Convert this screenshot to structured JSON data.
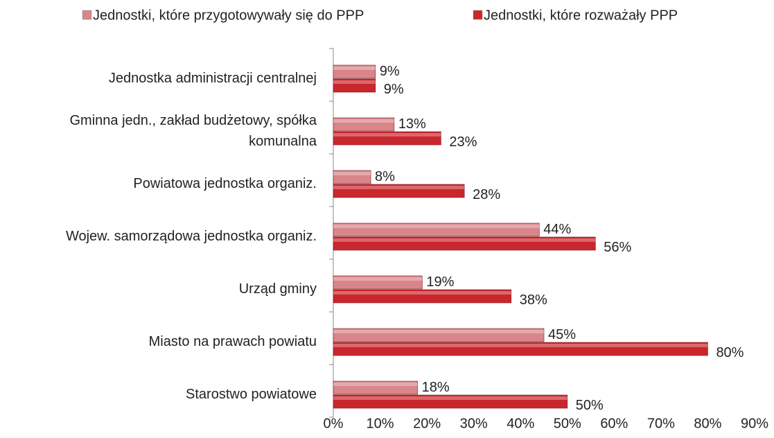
{
  "chart_data": {
    "type": "hbar",
    "categories": [
      "Jednostka administracji centralnej",
      "Gminna jedn., zakład budżetowy, spółka komunalna",
      "Powiatowa jednostka organiz.",
      "Wojew. samorządowa jednostka organiz.",
      "Urząd gminy",
      "Miasto na prawach powiatu",
      "Starostwo powiatowe"
    ],
    "series": [
      {
        "name": "Jednostki, które przygotowywały się do PPP",
        "color": "#d9868b",
        "values": [
          9,
          13,
          8,
          44,
          19,
          45,
          18
        ],
        "value_labels": [
          "9%",
          "13%",
          "8%",
          "44%",
          "19%",
          "45%",
          "18%"
        ]
      },
      {
        "name": "Jednostki, które rozważały PPP",
        "color": "#c9272d",
        "values": [
          9,
          23,
          28,
          56,
          38,
          80,
          50
        ],
        "value_labels": [
          "9%",
          "23%",
          "28%",
          "56%",
          "38%",
          "80%",
          "50%"
        ]
      }
    ],
    "xlim": [
      0,
      90
    ],
    "xticks": [
      {
        "value": 0,
        "label": "0%"
      },
      {
        "value": 10,
        "label": "10%"
      },
      {
        "value": 20,
        "label": "20%"
      },
      {
        "value": 30,
        "label": "30%"
      },
      {
        "value": 40,
        "label": "40%"
      },
      {
        "value": 50,
        "label": "50%"
      },
      {
        "value": 60,
        "label": "60%"
      },
      {
        "value": 70,
        "label": "70%"
      },
      {
        "value": 80,
        "label": "80%"
      },
      {
        "value": 90,
        "label": "90%"
      }
    ],
    "legend": "top",
    "grid": false
  }
}
